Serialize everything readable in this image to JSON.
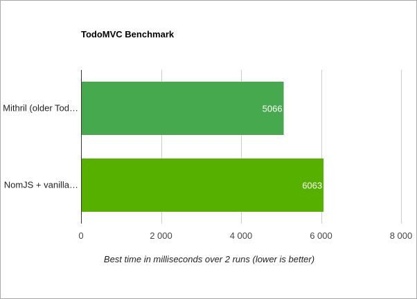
{
  "chart_data": {
    "type": "bar",
    "orientation": "horizontal",
    "title": "TodoMVC Benchmark",
    "xlabel": "Best time in milliseconds over 2 runs (lower is better)",
    "ylabel": "",
    "xlim": [
      0,
      8000
    ],
    "xticks": [
      0,
      2000,
      4000,
      6000,
      8000
    ],
    "xtick_labels": [
      "0",
      "2 000",
      "4 000",
      "6 000",
      "8 000"
    ],
    "grid": true,
    "legend": "none",
    "bars": [
      {
        "category": "Mithril (older Tod…",
        "value": 5066,
        "label": "5066",
        "color": "#46a94e"
      },
      {
        "category": "NomJS + vanilla…",
        "value": 6063,
        "label": "6063",
        "color": "#56b000"
      }
    ]
  }
}
